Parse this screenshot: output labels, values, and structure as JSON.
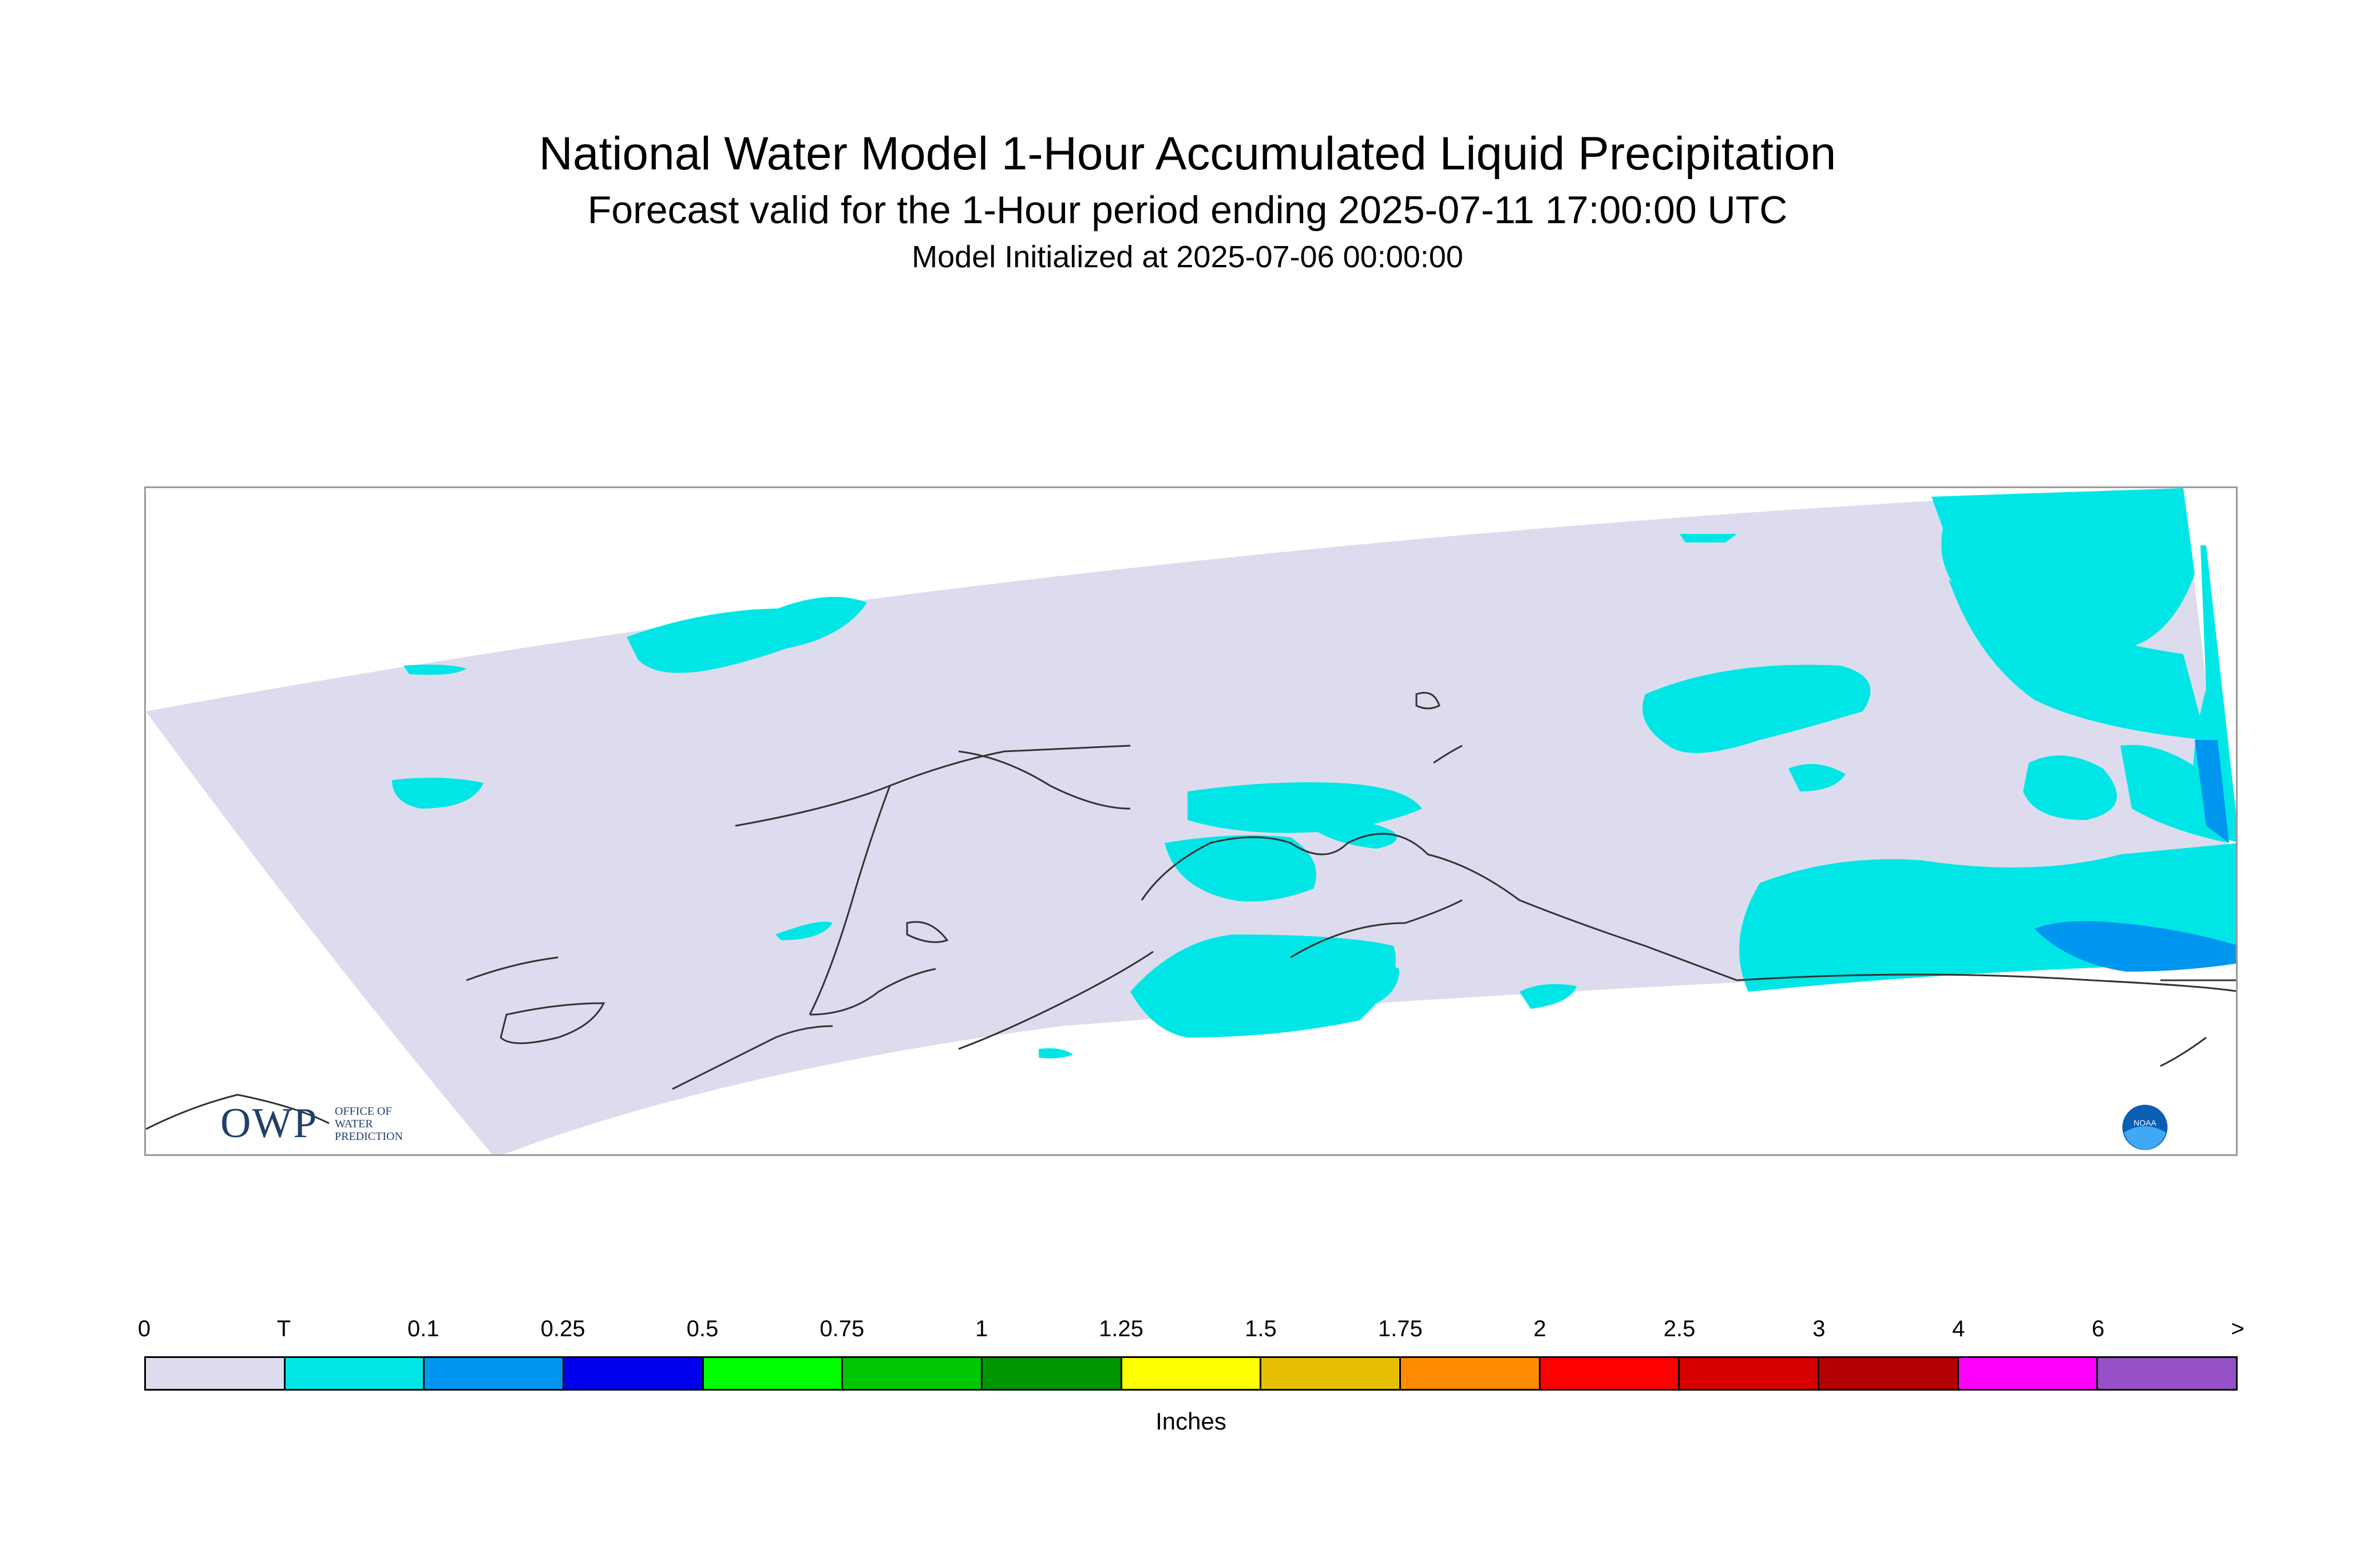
{
  "header": {
    "title": "National Water Model 1-Hour Accumulated Liquid Precipitation",
    "subtitle": "Forecast valid for the 1-Hour period ending 2025-07-11 17:00:00 UTC",
    "init": "Model Initialized at 2025-07-06 00:00:00"
  },
  "map": {
    "region_fill_color": "#dcdcee",
    "coastline_color": "#333333"
  },
  "logos": {
    "owp_letters": "OWP",
    "owp_sub": [
      "OFFICE OF",
      "WATER",
      "PREDICTION"
    ],
    "noaa_text": "NOAA"
  },
  "legend": {
    "tick_labels": [
      "0",
      "T",
      "0.1",
      "0.25",
      "0.5",
      "0.75",
      "1",
      "1.25",
      "1.5",
      "1.75",
      "2",
      "2.5",
      "3",
      "4",
      "6",
      ">"
    ],
    "colors": [
      "#dcdcee",
      "#00e6e6",
      "#0096f0",
      "#0000f0",
      "#00ff00",
      "#00c800",
      "#009600",
      "#ffff00",
      "#e6c000",
      "#ff8c00",
      "#ff0000",
      "#d70000",
      "#b40000",
      "#ff00ff",
      "#9650c8"
    ],
    "units": "Inches"
  }
}
